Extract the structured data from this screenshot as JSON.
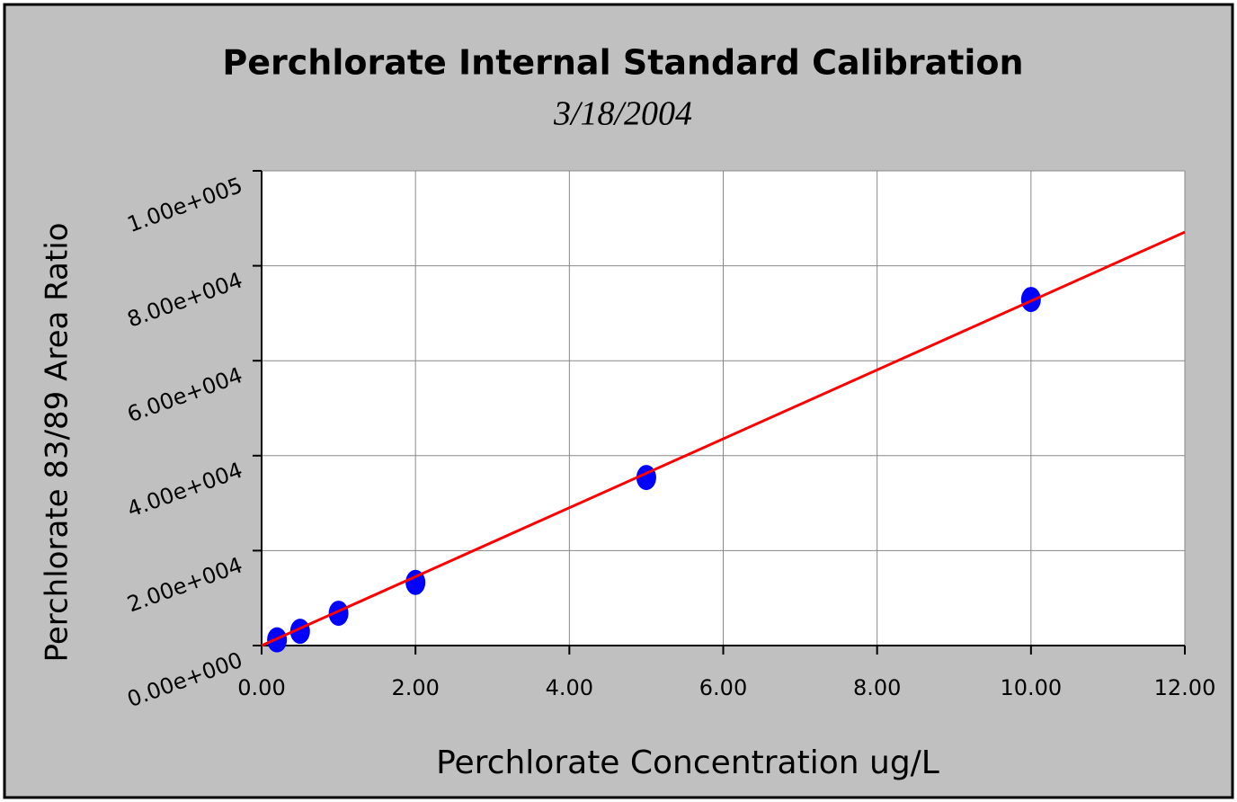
{
  "chart_data": {
    "type": "scatter",
    "title": "Perchlorate Internal Standard Calibration",
    "subtitle": "3/18/2004",
    "x_label": "Perchlorate Concentration ug/L",
    "y_label": "Perchlorate 83/89 Area Ratio",
    "x": [
      0.2,
      0.5,
      1,
      2,
      5,
      10
    ],
    "series": [
      {
        "color": "#0000ff",
        "values": [
          1200,
          3000,
          6800,
          13300,
          35400,
          72900
        ]
      }
    ],
    "fit": {
      "color": "#ff0000",
      "x": [
        0,
        12
      ],
      "values": [
        0,
        87100
      ]
    },
    "xlim": [
      0,
      12
    ],
    "ylim": [
      0,
      100000
    ],
    "xticks": [
      {
        "value": 0,
        "label": "0.00"
      },
      {
        "value": 2,
        "label": "2.00"
      },
      {
        "value": 4,
        "label": "4.00"
      },
      {
        "value": 6,
        "label": "6.00"
      },
      {
        "value": 8,
        "label": "8.00"
      },
      {
        "value": 10,
        "label": "10.00"
      },
      {
        "value": 12,
        "label": "12.00"
      }
    ],
    "yticks": [
      {
        "value": 0,
        "label": "0.00e+000"
      },
      {
        "value": 20000,
        "label": "2.00e+004"
      },
      {
        "value": 40000,
        "label": "4.00e+004"
      },
      {
        "value": 60000,
        "label": "6.00e+004"
      },
      {
        "value": 80000,
        "label": "8.00e+004"
      },
      {
        "value": 100000,
        "label": "1.00e+005"
      }
    ],
    "grid": true
  }
}
